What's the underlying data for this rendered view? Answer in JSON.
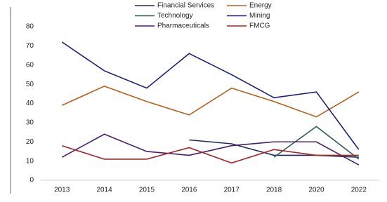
{
  "chart_data": {
    "type": "line",
    "categories": [
      "2013",
      "2014",
      "2015",
      "2016",
      "2017",
      "2018",
      "2020",
      "2022"
    ],
    "series": [
      {
        "name": "Financial Services",
        "color": "#1f2a5c",
        "values": [
          null,
          null,
          null,
          21,
          19,
          13,
          13,
          12
        ]
      },
      {
        "name": "Energy",
        "color": "#b5601e",
        "values": [
          39,
          49,
          41,
          34,
          48,
          41,
          33,
          46
        ]
      },
      {
        "name": "Technology",
        "color": "#2f5b57",
        "values": [
          null,
          null,
          null,
          null,
          null,
          12,
          28,
          11
        ]
      },
      {
        "name": "Mining",
        "color": "#1c1f78",
        "values": [
          72,
          57,
          48,
          66,
          55,
          43,
          46,
          16
        ]
      },
      {
        "name": "Pharmaceuticals",
        "color": "#4a1d6b",
        "values": [
          12,
          24,
          15,
          13,
          18,
          20,
          20,
          8
        ]
      },
      {
        "name": "FMCG",
        "color": "#a3262a",
        "values": [
          18,
          11,
          11,
          17,
          9,
          16,
          13,
          13
        ]
      }
    ],
    "ylim": [
      0,
      80
    ],
    "yticks": [
      0,
      10,
      20,
      30,
      40,
      50,
      60,
      70,
      80
    ]
  }
}
